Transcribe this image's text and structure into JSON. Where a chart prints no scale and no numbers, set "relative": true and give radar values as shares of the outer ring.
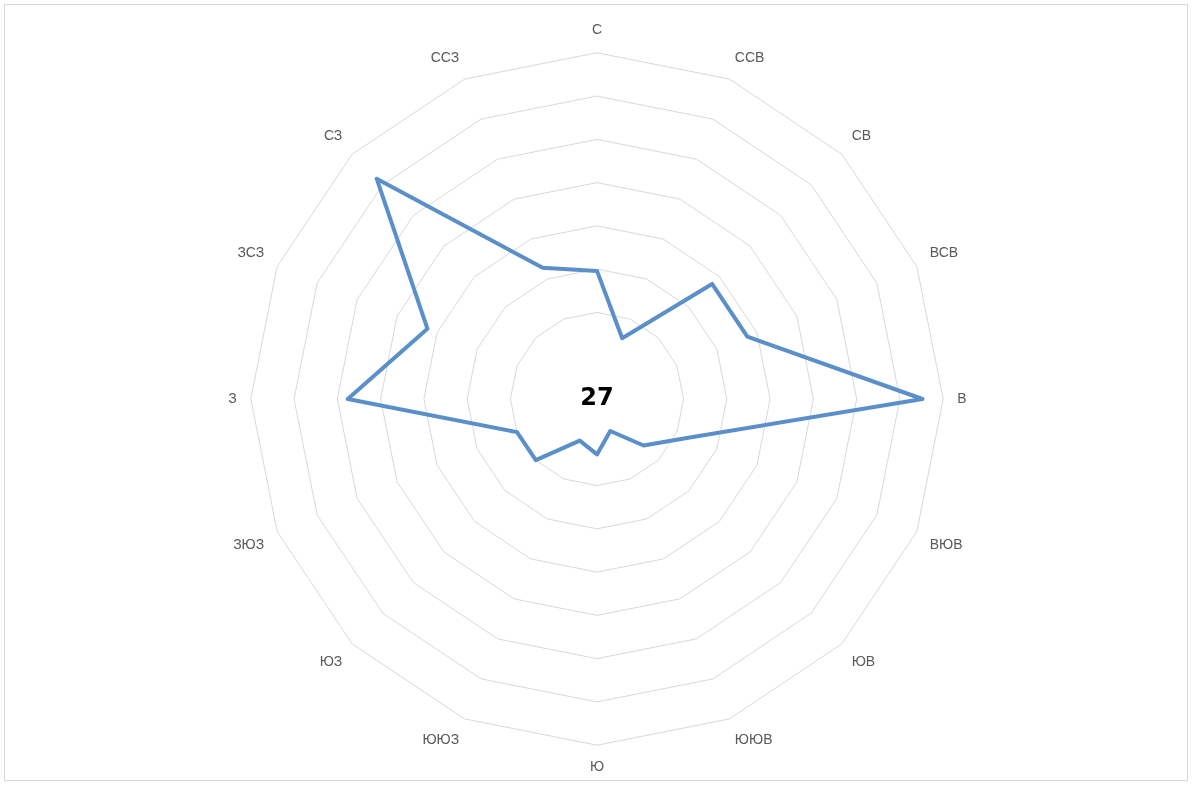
{
  "chart_data": {
    "type": "radar",
    "relative": true,
    "categories": [
      "С",
      "ССВ",
      "СВ",
      "ВСВ",
      "В",
      "ВЮВ",
      "ЮВ",
      "ЮЮВ",
      "Ю",
      "ЮЮЗ",
      "ЮЗ",
      "ЗЮЗ",
      "З",
      "ЗСЗ",
      "СЗ",
      "ССЗ"
    ],
    "series": [
      {
        "color": "#5b8fc9",
        "values": [
          0.37,
          0.19,
          0.47,
          0.47,
          0.94,
          0.29,
          0.19,
          0.1,
          0.16,
          0.13,
          0.25,
          0.25,
          0.72,
          0.53,
          0.9,
          0.41
        ]
      }
    ],
    "annotations": [
      "27"
    ],
    "grid": true,
    "legend": false,
    "marker": "none",
    "line_style": "solid"
  }
}
